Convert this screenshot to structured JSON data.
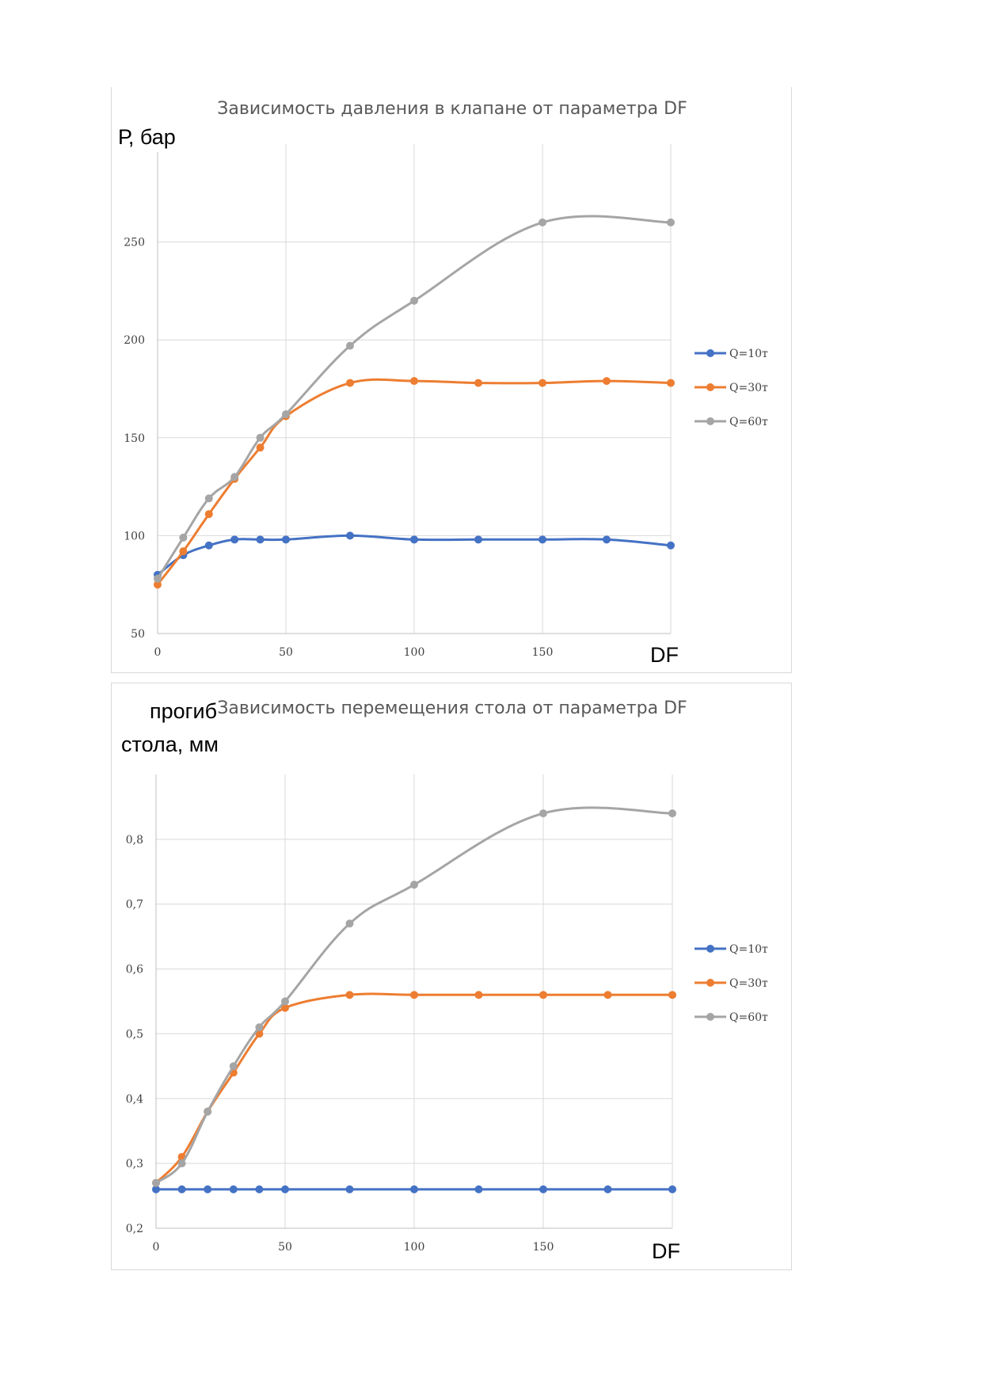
{
  "chart_data": [
    {
      "type": "line",
      "title": "Зависимость давления в клапане от параметра DF",
      "ylabel": "Р, бар",
      "xlabel": "DF",
      "xlim": [
        0,
        200
      ],
      "ylim": [
        50,
        300
      ],
      "xticks": [
        0,
        50,
        100,
        150
      ],
      "xtick_labels": [
        "0",
        "50",
        "100",
        "150"
      ],
      "yticks": [
        50,
        100,
        150,
        200,
        250
      ],
      "ytick_labels": [
        "50",
        "100",
        "150",
        "200",
        "250"
      ],
      "grid": true,
      "legend_position": "right",
      "x": [
        0,
        10,
        20,
        30,
        40,
        50,
        75,
        100,
        125,
        150,
        175,
        200
      ],
      "series": [
        {
          "name": "Q=10т",
          "color": "#4472C4",
          "values": [
            80,
            90,
            95,
            98,
            98,
            98,
            100,
            98,
            98,
            98,
            98,
            95
          ]
        },
        {
          "name": "Q=30т",
          "color": "#ED7D31",
          "values": [
            75,
            92,
            111,
            129,
            145,
            161,
            178,
            179,
            178,
            178,
            179,
            178
          ]
        },
        {
          "name": "Q=60т",
          "color": "#A5A5A5",
          "x": [
            0,
            10,
            20,
            30,
            40,
            50,
            75,
            100,
            150,
            200
          ],
          "values": [
            78,
            99,
            119,
            130,
            150,
            162,
            197,
            220,
            260,
            260
          ]
        }
      ]
    },
    {
      "type": "line",
      "title": "Зависимость перемещения стола от параметра DF",
      "ylabel": "прогиб стола, мм",
      "ylabel_lines": [
        "прогиб",
        "стола, мм"
      ],
      "xlabel": "DF",
      "xlim": [
        0,
        200
      ],
      "ylim": [
        0.2,
        0.9
      ],
      "xticks": [
        0,
        50,
        100,
        150
      ],
      "xtick_labels": [
        "0",
        "50",
        "100",
        "150"
      ],
      "yticks": [
        0.2,
        0.3,
        0.4,
        0.5,
        0.6,
        0.7,
        0.8
      ],
      "ytick_labels": [
        "0,2",
        "0,3",
        "0,4",
        "0,5",
        "0,6",
        "0,7",
        "0,8"
      ],
      "grid": true,
      "legend_position": "right",
      "x": [
        0,
        10,
        20,
        30,
        40,
        50,
        75,
        100,
        125,
        150,
        175,
        200
      ],
      "series": [
        {
          "name": "Q=10т",
          "color": "#4472C4",
          "values": [
            0.26,
            0.26,
            0.26,
            0.26,
            0.26,
            0.26,
            0.26,
            0.26,
            0.26,
            0.26,
            0.26,
            0.26
          ]
        },
        {
          "name": "Q=30т",
          "color": "#ED7D31",
          "values": [
            0.27,
            0.31,
            0.38,
            0.44,
            0.5,
            0.54,
            0.56,
            0.56,
            0.56,
            0.56,
            0.56,
            0.56
          ]
        },
        {
          "name": "Q=60т",
          "color": "#A5A5A5",
          "x": [
            0,
            10,
            20,
            30,
            40,
            50,
            75,
            100,
            150,
            200
          ],
          "values": [
            0.27,
            0.3,
            0.38,
            0.45,
            0.51,
            0.55,
            0.67,
            0.73,
            0.84,
            0.84
          ]
        }
      ]
    }
  ]
}
